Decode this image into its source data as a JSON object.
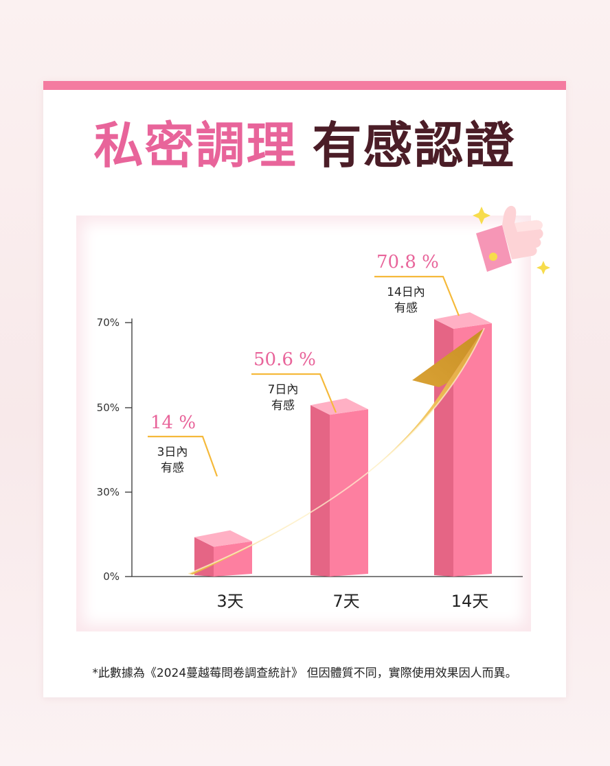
{
  "header": {
    "title_part1": "私密調理",
    "title_part2": "有感認證"
  },
  "colors": {
    "accent": "#f47ba0",
    "title_pink": "#e8649a",
    "title_dark": "#4b1d27",
    "bar_front": "#fd7fa0",
    "bar_side": "#e56585",
    "bar_top": "#ffb0c4",
    "callout_line": "#f5b93a",
    "callout_value": "#e8649a",
    "arrow_gold": "#f0c256"
  },
  "chart_data": {
    "type": "bar",
    "categories": [
      "3天",
      "7天",
      "14天"
    ],
    "values": [
      14,
      50.6,
      70.8
    ],
    "value_labels": [
      "14 %",
      "50.6 %",
      "70.8 %"
    ],
    "annotations": [
      [
        "3日內",
        "有感"
      ],
      [
        "7日內",
        "有感"
      ],
      [
        "14日內",
        "有感"
      ]
    ],
    "y_ticks": [
      0,
      30,
      50,
      70
    ],
    "y_tick_labels": [
      "0%",
      "30%",
      "50%",
      "70%"
    ],
    "ylim": [
      0,
      70
    ],
    "grid": false,
    "legend": "none"
  },
  "footnote": "*此數據為《2024蔓越莓問卷調查統計》 但因體質不同，實際使用效果因人而異。"
}
